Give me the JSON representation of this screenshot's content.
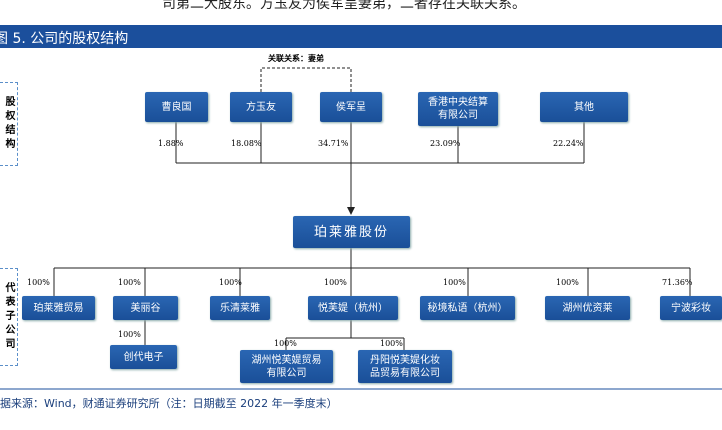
{
  "top_text": "司第二大股东。方玉友为侯军呈妻弟，二者存在关联关系。",
  "header": {
    "title": "图 5. 公司的股权结构"
  },
  "side_labels": [
    "股权结构",
    "代表子公司"
  ],
  "relation_note": "关联关系：妻弟",
  "shareholders": [
    {
      "name": [
        "曹良国"
      ],
      "share": "1.88%"
    },
    {
      "name": [
        "方玉友"
      ],
      "share": "18.08%"
    },
    {
      "name": [
        "侯军呈"
      ],
      "share": "34.71%"
    },
    {
      "name": [
        "香港中央结算",
        "有限公司"
      ],
      "share": "23.09%"
    },
    {
      "name": [
        "其他"
      ],
      "share": "22.24%"
    }
  ],
  "company": "珀莱雅股份",
  "subsidiaries": [
    {
      "name": [
        "珀莱雅贸易"
      ],
      "share": "100%"
    },
    {
      "name": [
        "美丽谷"
      ],
      "share": "100%"
    },
    {
      "name": [
        "乐清莱雅"
      ],
      "share": "100%"
    },
    {
      "name": [
        "悦芙媞（杭州）"
      ],
      "share": "100%"
    },
    {
      "name": [
        "秘境私语（杭州）"
      ],
      "share": "100%"
    },
    {
      "name": [
        "湖州优资莱"
      ],
      "share": "100%"
    },
    {
      "name": [
        "宁波彩妆"
      ],
      "share": "71.36%"
    }
  ],
  "second_level": [
    {
      "name": [
        "创代电子"
      ],
      "share": "100%"
    },
    {
      "name": [
        "湖州悦芙媞贸易",
        "有限公司"
      ],
      "share": "100%"
    },
    {
      "name": [
        "丹阳悦芙媞化妆",
        "品贸易有限公司"
      ],
      "share": "100%"
    }
  ],
  "source": "据来源：Wind，财通证券研究所（注：日期截至 2022 年一季度末）"
}
